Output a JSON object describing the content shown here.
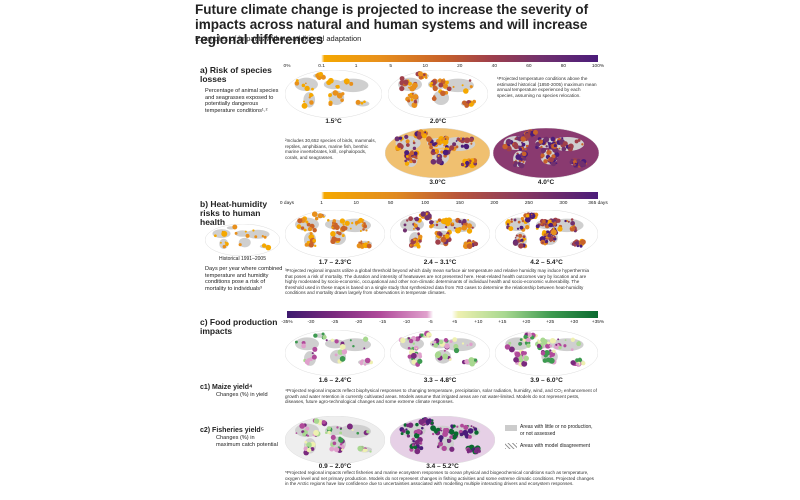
{
  "header": {
    "title": "Future climate change is projected to increase the severity of impacts across natural and human systems and will increase regional differences",
    "subtitle": "Examples of impacts without additional adaptation"
  },
  "panel_a": {
    "label": "a) Risk of species losses",
    "description": "Percentage of animal species and seagrasses exposed to potentially dangerous temperature conditions¹˒²",
    "scale": [
      "0%",
      "0.1",
      "1",
      "5",
      "10",
      "20",
      "40",
      "60",
      "80",
      "100%"
    ],
    "maps": [
      "1.5°C",
      "2.0°C",
      "3.0°C",
      "4.0°C"
    ],
    "note_1": "¹Projected temperature conditions above the estimated historical (1850-2005) maximum mean annual temperature experienced by each species, assuming no species relocation.",
    "note_2": "²Includes 30,652 species of birds, mammals, reptiles, amphibians, marine fish, benthic marine invertebrates, krill, cephalopods, corals, and seagrasses."
  },
  "panel_b": {
    "label": "b) Heat-humidity risks to human health",
    "historical": "Historical 1991–2005",
    "description": "Days per year where combined temperature and humidity conditions pose a risk of mortality to individuals³",
    "scale": [
      "0 days",
      "1",
      "10",
      "50",
      "100",
      "150",
      "200",
      "250",
      "300",
      "365 days"
    ],
    "maps": [
      "1.7 – 2.3°C",
      "2.4 – 3.1°C",
      "4.2 – 5.4°C"
    ],
    "note": "³Projected regional impacts utilize a global threshold beyond which daily mean surface air temperature and relative humidity may induce hyperthermia that poses a risk of mortality. The duration and intensity of heatwaves are not presented here. Heat-related health outcomes vary by location and are highly moderated by socio-economic, occupational and other non-climatic determinants of individual health and socio-economic vulnerability. The threshold used in these maps is based on a single study that synthesized data from 783 cases to determine the relationship between heat-humidity conditions and mortality drawn largely from observations in temperate climates."
  },
  "panel_c": {
    "label": "c) Food production impacts",
    "scale": [
      "-35%",
      "-30",
      "-25",
      "-20",
      "-15",
      "-10",
      "-5",
      "+5",
      "+10",
      "+15",
      "+20",
      "+25",
      "+30",
      "+35%"
    ],
    "c1": {
      "label": "c1) Maize yield⁴",
      "description": "Changes (%) in yield",
      "maps": [
        "1.6 – 2.4°C",
        "3.3 – 4.8°C",
        "3.9 – 6.0°C"
      ],
      "note": "⁴Projected regional impacts reflect biophysical responses to changing temperature, precipitation, solar radiation, humidity, wind, and CO₂ enhancement of growth and water retention in currently cultivated areas. Models assume that irrigated areas are not water-limited. Models do not represent pests, diseases, future agro-technological changes and some extreme climate responses."
    },
    "c2": {
      "label": "c2) Fisheries yield⁵",
      "description": "Changes (%) in maximum catch potential",
      "maps": [
        "0.9 – 2.0°C",
        "3.4 – 5.2°C"
      ],
      "note": "⁵Projected regional impacts reflect fisheries and marine ecosystem responses to ocean physical and biogeochemical conditions such as temperature, oxygen level and net primary production. Models do not represent changes in fishing activities and some extreme climatic conditions. Projected changes in the Arctic regions have low confidence due to uncertainties associated with modelling multiple interacting drivers and ecosystem responses."
    },
    "legend": [
      "Areas with little or no production, or not assessed",
      "Areas with model disagreement"
    ]
  }
}
